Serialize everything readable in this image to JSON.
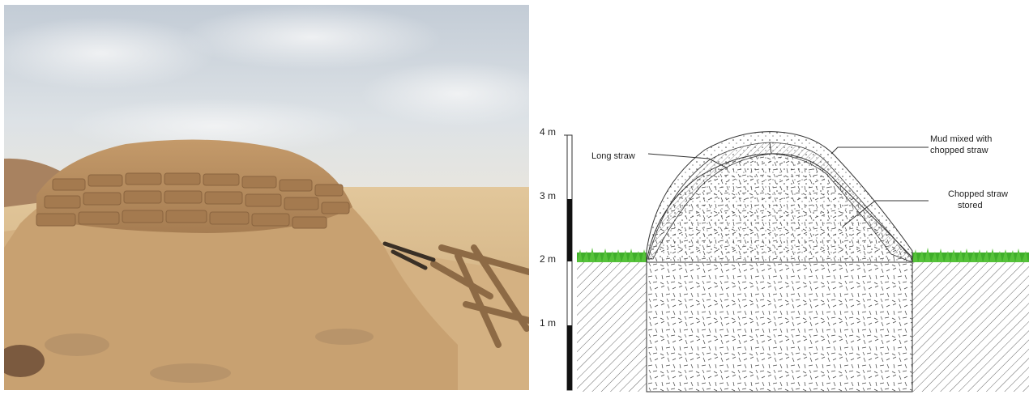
{
  "scale": {
    "ticks": [
      {
        "label": "4 m",
        "value": 4
      },
      {
        "label": "3 m",
        "value": 3
      },
      {
        "label": "2 m",
        "value": 2
      },
      {
        "label": "1 m",
        "value": 1
      }
    ]
  },
  "labels": {
    "long_straw": "Long straw",
    "mud_line1": "Mud mixed with",
    "mud_line2": "chopped straw",
    "chopped_line1": "Chopped straw",
    "chopped_line2": "stored"
  },
  "colors": {
    "sky": "#c9d2db",
    "soil": "#d8b98a",
    "mound": "#b48f62",
    "grass": "#3fae2a",
    "hatch": "#555555"
  }
}
